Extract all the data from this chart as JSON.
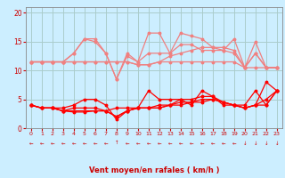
{
  "bg_color": "#cceeff",
  "grid_color": "#aacccc",
  "xlabel": "Vent moyen/en rafales ( km/h )",
  "xlim": [
    -0.5,
    23.5
  ],
  "ylim": [
    0,
    21
  ],
  "yticks": [
    0,
    5,
    10,
    15,
    20
  ],
  "xticks": [
    0,
    1,
    2,
    3,
    4,
    5,
    6,
    7,
    8,
    9,
    10,
    11,
    12,
    13,
    14,
    15,
    16,
    17,
    18,
    19,
    20,
    21,
    22,
    23
  ],
  "light_lines": [
    [
      11.5,
      11.5,
      11.5,
      11.5,
      11.5,
      11.5,
      11.5,
      11.5,
      11.5,
      11.5,
      11.0,
      11.0,
      11.5,
      11.5,
      11.5,
      11.5,
      11.5,
      11.5,
      11.5,
      11.5,
      10.5,
      10.5,
      10.5,
      10.5
    ],
    [
      11.5,
      11.5,
      11.5,
      11.5,
      13.0,
      15.5,
      15.5,
      13.0,
      8.5,
      13.0,
      11.5,
      16.5,
      16.5,
      13.0,
      16.5,
      16.0,
      15.5,
      14.0,
      13.5,
      15.5,
      10.5,
      15.0,
      10.5,
      10.5
    ],
    [
      11.5,
      11.5,
      11.5,
      11.5,
      13.0,
      15.5,
      15.0,
      13.0,
      8.5,
      12.5,
      11.5,
      13.0,
      13.0,
      13.0,
      14.5,
      14.5,
      13.5,
      13.5,
      13.5,
      13.0,
      10.5,
      13.0,
      10.5,
      10.5
    ],
    [
      11.5,
      11.5,
      11.5,
      11.5,
      11.5,
      11.5,
      11.5,
      11.5,
      11.5,
      11.5,
      11.0,
      11.0,
      11.5,
      12.5,
      13.0,
      13.5,
      14.0,
      14.0,
      14.0,
      13.5,
      10.5,
      13.0,
      10.5,
      10.5
    ]
  ],
  "light_color": "#f08080",
  "red_lines": [
    [
      4.0,
      3.5,
      3.5,
      3.5,
      4.0,
      5.0,
      5.0,
      4.0,
      1.5,
      3.0,
      3.5,
      6.5,
      5.0,
      5.0,
      5.0,
      4.0,
      6.5,
      5.5,
      4.0,
      4.0,
      4.0,
      6.5,
      4.0,
      6.5
    ],
    [
      4.0,
      3.5,
      3.5,
      3.0,
      3.5,
      3.5,
      3.5,
      3.0,
      2.0,
      3.0,
      3.5,
      3.5,
      4.0,
      4.0,
      5.0,
      5.0,
      5.5,
      5.5,
      4.5,
      4.0,
      3.5,
      4.0,
      8.0,
      6.5
    ],
    [
      4.0,
      3.5,
      3.5,
      3.0,
      3.0,
      3.0,
      3.0,
      3.0,
      2.0,
      3.0,
      3.5,
      3.5,
      3.5,
      4.0,
      4.5,
      4.5,
      5.0,
      5.0,
      4.5,
      4.0,
      3.5,
      4.0,
      5.0,
      6.5
    ],
    [
      4.0,
      3.5,
      3.5,
      3.0,
      2.8,
      2.8,
      3.0,
      3.0,
      3.5,
      3.5,
      3.5,
      3.5,
      3.5,
      4.0,
      4.0,
      4.5,
      4.5,
      5.0,
      4.5,
      4.0,
      3.5,
      4.0,
      4.0,
      6.5
    ]
  ],
  "red_color": "#ff0000",
  "arrow_symbols": [
    "←",
    "←",
    "←",
    "←",
    "←",
    "←",
    "←",
    "←",
    "↑",
    "←",
    "←",
    "←",
    "←",
    "←",
    "←",
    "←",
    "←",
    "←",
    "←",
    "←",
    "↓",
    "↓",
    "↓",
    "↓"
  ],
  "arrow_color": "#cc0000",
  "xlabel_color": "#cc0000",
  "tick_color": "#cc0000",
  "axis_color": "#888888"
}
